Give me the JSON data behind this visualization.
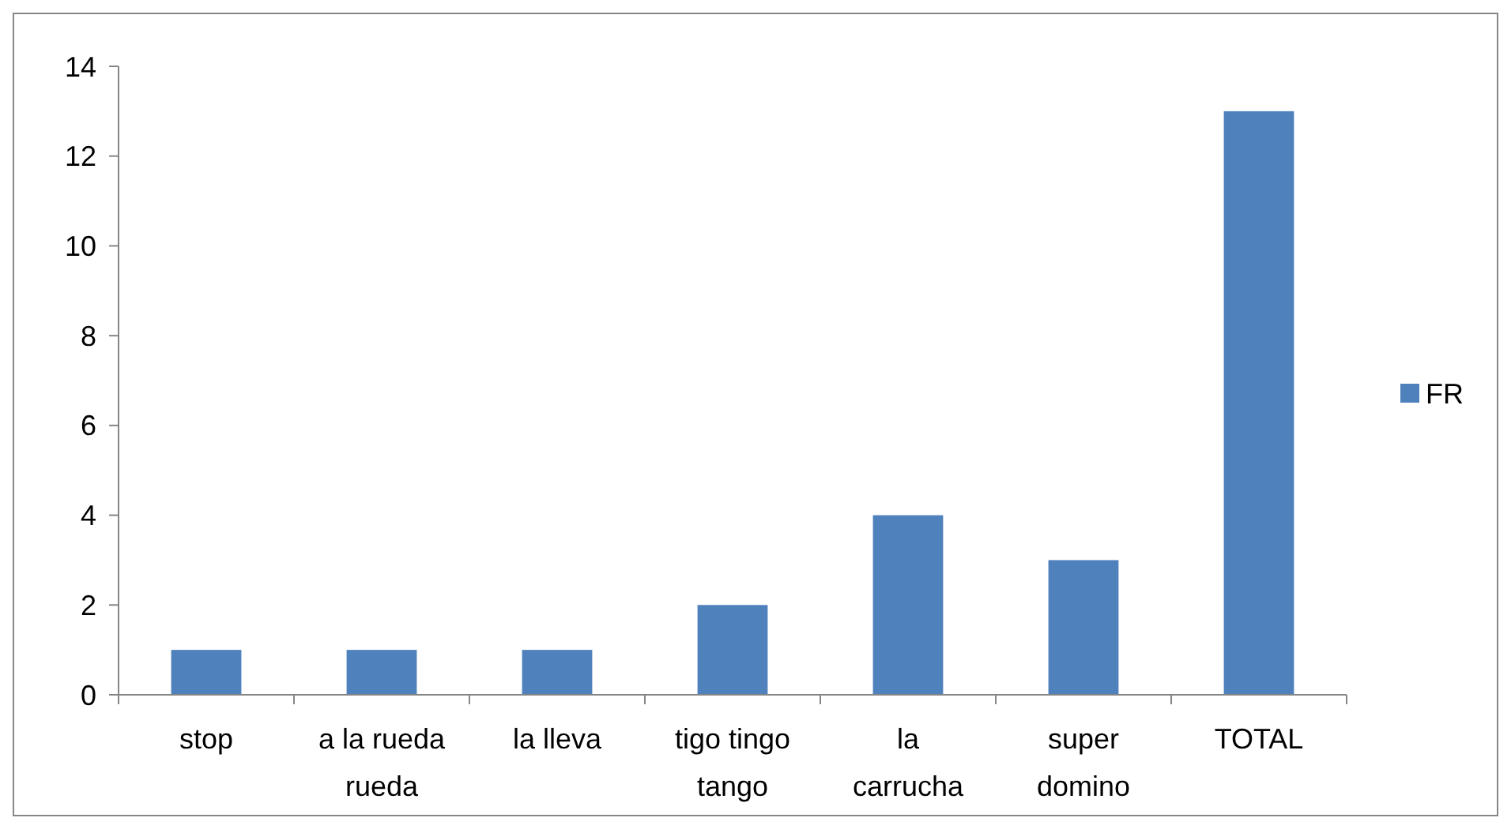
{
  "chart_data": {
    "type": "bar",
    "categories": [
      "stop",
      "a la rueda rueda",
      "la lleva",
      "tigo tingo tango",
      "la carrucha",
      "super domino",
      "TOTAL"
    ],
    "series": [
      {
        "name": "FR",
        "color": "#4f81bd",
        "values": [
          1,
          1,
          1,
          2,
          4,
          3,
          13
        ]
      }
    ],
    "ylim": [
      0,
      14
    ],
    "yticks": [
      0,
      2,
      4,
      6,
      8,
      10,
      12,
      14
    ],
    "grid": false,
    "legend": "right"
  }
}
